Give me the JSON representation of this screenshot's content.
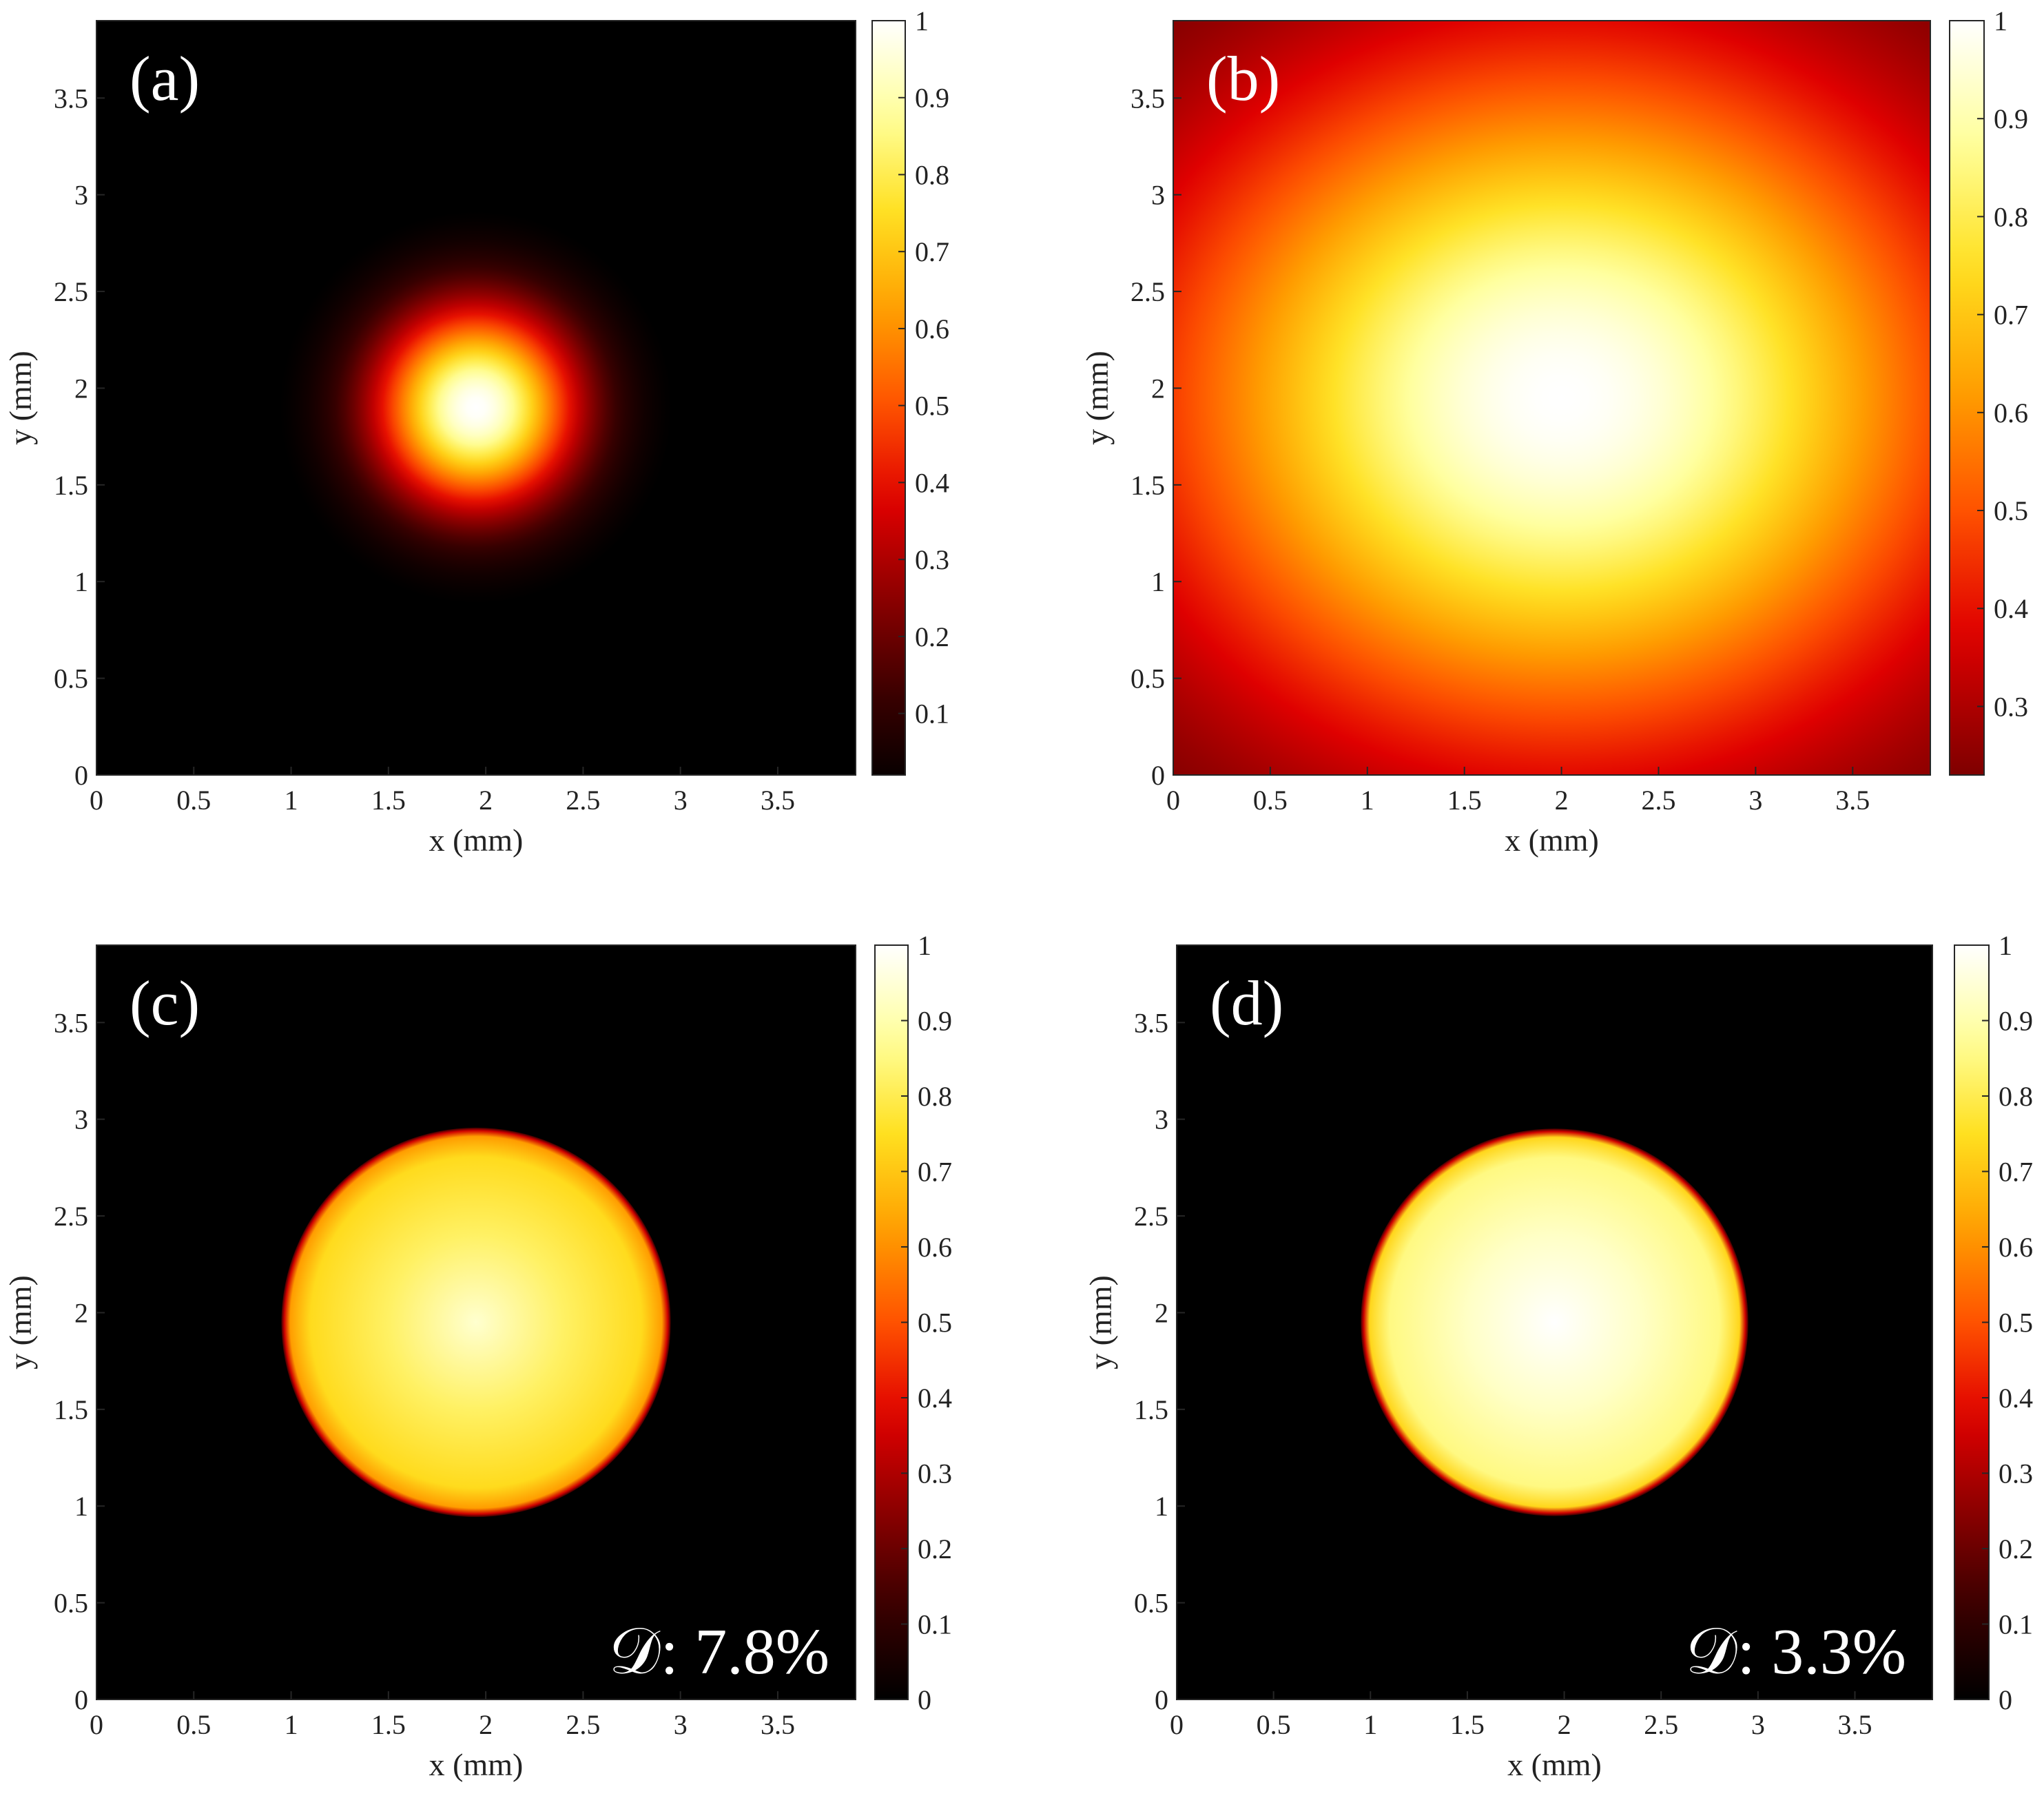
{
  "colors": {
    "colormap": [
      "#000000",
      "#3a0000",
      "#8c0000",
      "#e00000",
      "#ff5200",
      "#ffa000",
      "#ffe020",
      "#ffff9a",
      "#ffffff"
    ],
    "background": "#000000",
    "text": "#222222",
    "annotation": "#ffffff"
  },
  "chart_data": [
    {
      "panel": "(a)",
      "type": "heatmap",
      "title": "",
      "xlabel": "x (mm)",
      "ylabel": "y (mm)",
      "xlim": [
        0,
        3.9
      ],
      "ylim": [
        0,
        3.9
      ],
      "xticks": [
        0,
        0.5,
        1,
        1.5,
        2,
        2.5,
        3,
        3.5
      ],
      "yticks": [
        0,
        0.5,
        1,
        1.5,
        2,
        2.5,
        3,
        3.5
      ],
      "colorbar": {
        "min": 0.02,
        "max": 1,
        "ticks": [
          0.1,
          0.2,
          0.3,
          0.4,
          0.5,
          0.6,
          0.7,
          0.8,
          0.9,
          1
        ]
      },
      "beam": {
        "profile": "gaussian",
        "center_x": 1.95,
        "center_y": 1.9,
        "sigma": 0.36,
        "peak": 1.0
      },
      "annotation": ""
    },
    {
      "panel": "(b)",
      "type": "heatmap",
      "title": "",
      "xlabel": "x (mm)",
      "ylabel": "y (mm)",
      "xlim": [
        0,
        3.9
      ],
      "ylim": [
        0,
        3.9
      ],
      "xticks": [
        0,
        0.5,
        1,
        1.5,
        2,
        2.5,
        3,
        3.5
      ],
      "yticks": [
        0,
        0.5,
        1,
        1.5,
        2,
        2.5,
        3,
        3.5
      ],
      "colorbar": {
        "min": 0.23,
        "max": 1,
        "ticks": [
          0.3,
          0.4,
          0.5,
          0.6,
          0.7,
          0.8,
          0.9,
          1
        ]
      },
      "beam": {
        "profile": "broad",
        "center_x": 2.0,
        "center_y": 1.95,
        "sigma": 1.2,
        "peak": 1.0,
        "edge_value": 0.35
      },
      "annotation": ""
    },
    {
      "panel": "(c)",
      "type": "heatmap",
      "title": "",
      "xlabel": "x (mm)",
      "ylabel": "y (mm)",
      "xlim": [
        0,
        3.9
      ],
      "ylim": [
        0,
        3.9
      ],
      "xticks": [
        0,
        0.5,
        1,
        1.5,
        2,
        2.5,
        3,
        3.5
      ],
      "yticks": [
        0,
        0.5,
        1,
        1.5,
        2,
        2.5,
        3,
        3.5
      ],
      "colorbar": {
        "min": 0,
        "max": 1,
        "ticks": [
          0,
          0.1,
          0.2,
          0.3,
          0.4,
          0.5,
          0.6,
          0.7,
          0.8,
          0.9,
          1
        ]
      },
      "beam": {
        "profile": "flat-top",
        "center_x": 1.95,
        "center_y": 1.95,
        "radius": 1.0,
        "interior_value": 0.82
      },
      "annotation": "𝒟: 7.8%"
    },
    {
      "panel": "(d)",
      "type": "heatmap",
      "title": "",
      "xlabel": "x (mm)",
      "ylabel": "y (mm)",
      "xlim": [
        0,
        3.9
      ],
      "ylim": [
        0,
        3.9
      ],
      "xticks": [
        0,
        0.5,
        1,
        1.5,
        2,
        2.5,
        3,
        3.5
      ],
      "yticks": [
        0,
        0.5,
        1,
        1.5,
        2,
        2.5,
        3,
        3.5
      ],
      "colorbar": {
        "min": 0,
        "max": 1,
        "ticks": [
          0,
          0.1,
          0.2,
          0.3,
          0.4,
          0.5,
          0.6,
          0.7,
          0.8,
          0.9,
          1
        ]
      },
      "beam": {
        "profile": "flat-top",
        "center_x": 1.95,
        "center_y": 1.95,
        "radius": 1.0,
        "interior_value": 0.93
      },
      "annotation": "𝒟: 3.3%"
    }
  ]
}
